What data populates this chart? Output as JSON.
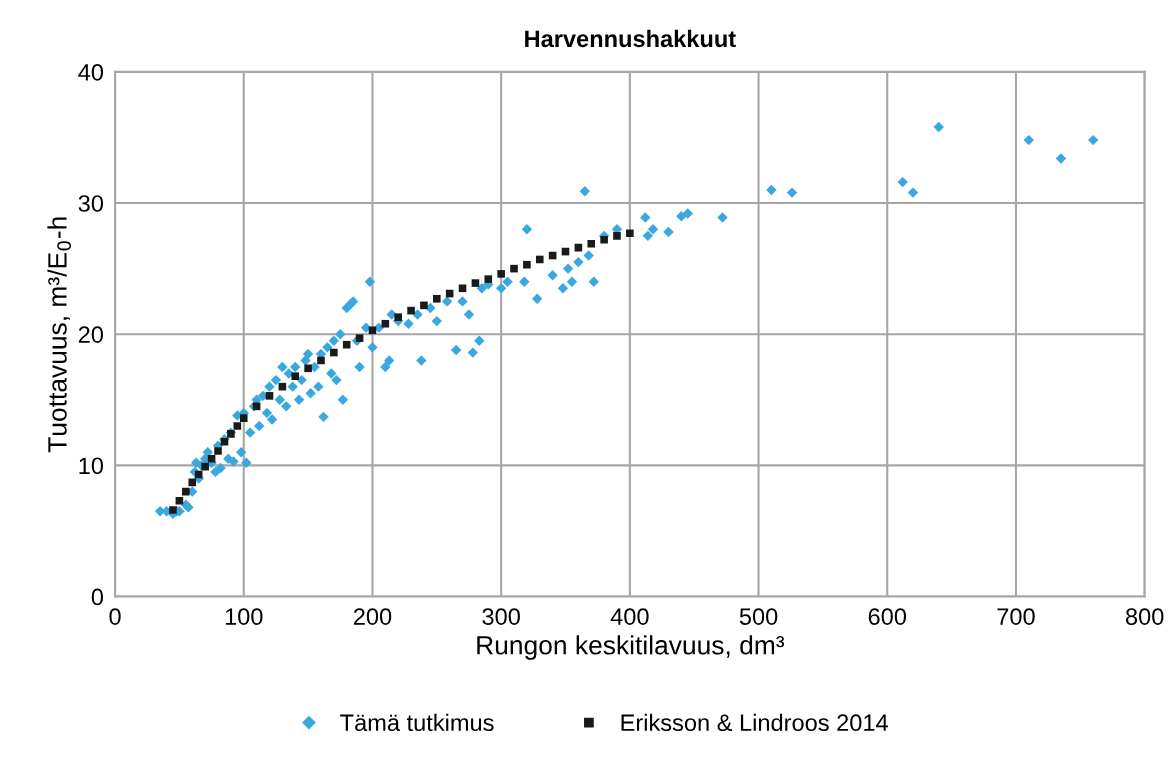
{
  "chart_data": {
    "type": "scatter",
    "title": "Harvennushakkuut",
    "xlabel": "Rungon keskitilavuus, dm³",
    "ylabel": "Tuottavuus, m³/E$_{0}$-h",
    "xlim": [
      0,
      800
    ],
    "xticks": [
      0,
      100,
      200,
      300,
      400,
      500,
      600,
      700,
      800
    ],
    "ylim": [
      0,
      40
    ],
    "yticks": [
      0,
      10,
      20,
      30,
      40
    ],
    "grid": true,
    "legend": "bottom",
    "series": [
      {
        "name": "Tämä tutkimus",
        "color": "#3aa8df",
        "marker": "diamond",
        "x": [
          35,
          40,
          45,
          48,
          50,
          55,
          57,
          60,
          62,
          63,
          65,
          67,
          70,
          72,
          75,
          78,
          80,
          82,
          85,
          88,
          90,
          92,
          95,
          98,
          100,
          102,
          105,
          108,
          110,
          112,
          115,
          118,
          120,
          122,
          125,
          128,
          130,
          133,
          135,
          138,
          140,
          143,
          145,
          148,
          150,
          152,
          155,
          158,
          160,
          162,
          165,
          168,
          170,
          172,
          175,
          177,
          180,
          183,
          185,
          188,
          190,
          195,
          198,
          200,
          205,
          210,
          213,
          215,
          220,
          228,
          235,
          238,
          245,
          250,
          258,
          265,
          270,
          275,
          278,
          283,
          285,
          290,
          300,
          305,
          318,
          320,
          328,
          340,
          348,
          352,
          355,
          360,
          365,
          368,
          372,
          380,
          390,
          412,
          414,
          418,
          430,
          440,
          445,
          472,
          510,
          526,
          612,
          620,
          640,
          710,
          735,
          760
        ],
        "values": [
          6.5,
          6.5,
          6.3,
          6.5,
          6.5,
          7.0,
          6.8,
          8.0,
          9.5,
          10.2,
          9.0,
          10.0,
          10.5,
          11.0,
          10.2,
          9.5,
          11.5,
          9.8,
          12.0,
          10.5,
          12.5,
          10.3,
          13.8,
          11.0,
          14.0,
          10.2,
          12.5,
          14.5,
          15.0,
          13.0,
          15.3,
          14.0,
          16.0,
          13.5,
          16.5,
          15.0,
          17.5,
          14.5,
          17.0,
          16.0,
          17.5,
          15.0,
          16.5,
          18.0,
          18.5,
          15.5,
          17.5,
          16.0,
          18.5,
          13.7,
          19.0,
          17.0,
          19.5,
          16.5,
          20.0,
          15.0,
          22.0,
          22.3,
          22.5,
          19.5,
          17.5,
          20.5,
          24.0,
          19.0,
          20.5,
          17.5,
          18.0,
          21.5,
          21.0,
          20.8,
          21.5,
          18.0,
          22.0,
          21.0,
          22.5,
          18.8,
          22.5,
          21.5,
          18.6,
          19.5,
          23.5,
          23.8,
          23.5,
          24.0,
          24.0,
          28.0,
          22.7,
          24.5,
          23.5,
          25.0,
          24.0,
          25.5,
          30.9,
          26.0,
          24.0,
          27.5,
          28.0,
          28.9,
          27.5,
          28.0,
          27.8,
          29.0,
          29.2,
          28.9,
          31.0,
          30.8,
          31.6,
          30.8,
          35.8,
          34.8,
          33.4,
          34.8
        ]
      },
      {
        "name": "Eriksson & Lindroos 2014",
        "color": "#1a1a1a",
        "marker": "square",
        "x": [
          45,
          50,
          55,
          60,
          65,
          70,
          75,
          80,
          85,
          90,
          95,
          100,
          110,
          120,
          130,
          140,
          150,
          160,
          170,
          180,
          190,
          200,
          210,
          220,
          230,
          240,
          250,
          260,
          270,
          280,
          290,
          300,
          310,
          320,
          330,
          340,
          350,
          360,
          370,
          380,
          390,
          400
        ],
        "values": [
          6.6,
          7.3,
          8.0,
          8.7,
          9.3,
          9.9,
          10.5,
          11.1,
          11.8,
          12.4,
          13.0,
          13.6,
          14.5,
          15.3,
          16.0,
          16.8,
          17.4,
          18.0,
          18.6,
          19.2,
          19.7,
          20.3,
          20.8,
          21.3,
          21.8,
          22.2,
          22.7,
          23.1,
          23.5,
          23.9,
          24.2,
          24.6,
          25.0,
          25.3,
          25.7,
          26.0,
          26.3,
          26.6,
          26.9,
          27.2,
          27.5,
          27.7
        ]
      }
    ]
  }
}
